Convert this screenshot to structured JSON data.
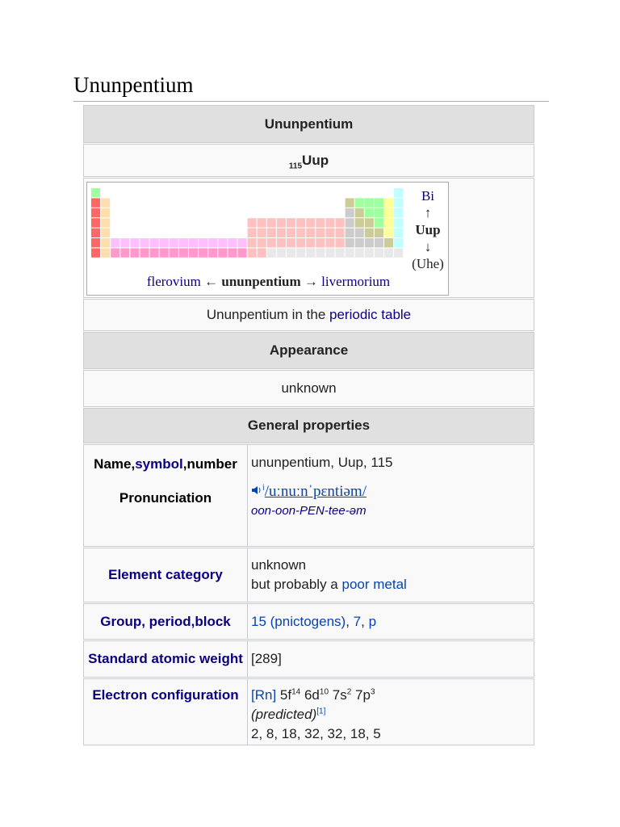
{
  "page_title": "Ununpentium",
  "infobox": {
    "header": "Ununpentium",
    "symbol": {
      "number": "115",
      "symbol": "Uup"
    },
    "periodic_table": {
      "above": "Bi",
      "up_arrow": "↑",
      "element": "Uup",
      "down_arrow": "↓",
      "below": "(Uhe)",
      "left": "flerovium",
      "left_arrow": "←",
      "center": "ununpentium",
      "right_arrow": "→",
      "right": "livermorium"
    },
    "caption": {
      "text": "Ununpentium in the",
      "link": "periodic table"
    },
    "appearance": {
      "header": "Appearance",
      "value": "unknown"
    },
    "general_properties": {
      "header": "General properties",
      "rows": [
        {
          "label": [
            "Name,",
            "symbol",
            ",",
            "number"
          ],
          "value": "ununpentium, Uup, 115"
        },
        {
          "label": "Pronunciation",
          "icon": "i",
          "ipa": "/uːnuːnˈpɛntiəm/",
          "respelling": "oon-oon-PEN-tee-əm"
        },
        {
          "label": "Element category",
          "value": [
            "unknown",
            "but probably a",
            "poor metal"
          ]
        },
        {
          "label": "Group, period,block",
          "value": [
            "15 (pnictogens)",
            ", ",
            "7",
            ", ",
            "p"
          ]
        },
        {
          "label": "Standard atomic weight",
          "value": "[289]"
        },
        {
          "label": "Electron configuration",
          "config": [
            "[Rn]",
            "5f",
            "14",
            "6d",
            "10",
            "7s",
            "2",
            "7p",
            "3"
          ],
          "note": "(predicted)",
          "ref": "[1]",
          "shells": "2, 8, 18, 32, 32, 18, 5"
        }
      ]
    }
  }
}
